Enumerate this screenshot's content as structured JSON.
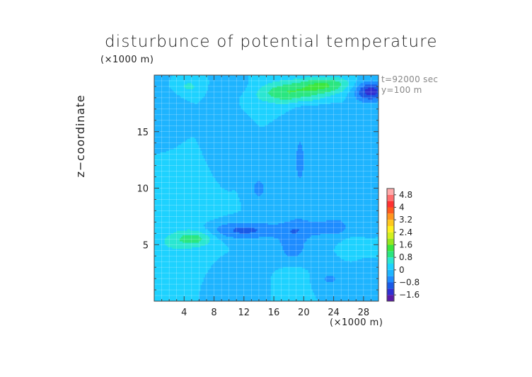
{
  "chart_data": {
    "type": "heatmap",
    "title": "disturbunce of potential temperature",
    "ylabel": "z−coordinate",
    "xunit": "(×1000 m)",
    "yunit": "(×1000 m)",
    "annotations": [
      "t=92000 sec",
      "y=100 m"
    ],
    "xlim": [
      0,
      30
    ],
    "ylim": [
      0,
      20
    ],
    "xticks": [
      4,
      8,
      12,
      16,
      20,
      24,
      28
    ],
    "xtick_labels": [
      "4",
      "8",
      "12",
      "16",
      "20",
      "24",
      "28"
    ],
    "yticks": [
      5,
      10,
      15
    ],
    "ytick_labels": [
      "5",
      "10",
      "15"
    ],
    "grid": true,
    "colorbar": {
      "levels": [
        -2.0,
        -1.6,
        -1.2,
        -0.8,
        -0.4,
        0,
        0.4,
        0.8,
        1.2,
        1.6,
        2.0,
        2.4,
        2.8,
        3.2,
        3.6,
        4.0,
        4.4,
        4.8,
        5.2
      ],
      "tick_values": [
        -1.6,
        -0.8,
        0,
        0.8,
        1.6,
        2.4,
        3.2,
        4,
        4.8
      ],
      "tick_labels": [
        "−1.6",
        "−0.8",
        "0",
        "0.8",
        "1.6",
        "2.4",
        "3.2",
        "4",
        "4.8"
      ],
      "colors": [
        "#5a1aa8",
        "#2f2fd2",
        "#1a5ae6",
        "#1e8cff",
        "#1eb4ff",
        "#1ed2ff",
        "#2ae6d2",
        "#2ae680",
        "#3ce63c",
        "#96e61e",
        "#d2f01e",
        "#fff01e",
        "#ffc81e",
        "#ff961e",
        "#ff5a1e",
        "#ff3232",
        "#ff6e6e",
        "#ffaaaa"
      ]
    },
    "field_features": [
      {
        "x": 18,
        "z": 18.5,
        "value": 1.2,
        "sx": 3.5,
        "sz": 0.7
      },
      {
        "x": 23,
        "z": 19.2,
        "value": 1.0,
        "sx": 2.5,
        "sz": 0.5
      },
      {
        "x": 4.5,
        "z": 19.0,
        "value": 0.5,
        "sx": 2.0,
        "sz": 0.6
      },
      {
        "x": 29,
        "z": 18.6,
        "value": -1.4,
        "sx": 1.6,
        "sz": 0.6
      },
      {
        "x": 1.5,
        "z": 17.5,
        "value": -0.4,
        "sx": 1.5,
        "sz": 1.5
      },
      {
        "x": 11,
        "z": 18.8,
        "value": -0.3,
        "sx": 3.0,
        "sz": 0.6
      },
      {
        "x": 9,
        "z": 15.5,
        "value": -0.4,
        "sx": 1.2,
        "sz": 3.0
      },
      {
        "x": 14,
        "z": 10.0,
        "value": -0.5,
        "sx": 1.0,
        "sz": 1.0
      },
      {
        "x": 19.5,
        "z": 12.5,
        "value": -0.45,
        "sx": 1.0,
        "sz": 3.2
      },
      {
        "x": 22.5,
        "z": 16.5,
        "value": -0.35,
        "sx": 2.0,
        "sz": 0.8
      },
      {
        "x": 24.5,
        "z": 10.0,
        "value": -0.35,
        "sx": 1.2,
        "sz": 2.5
      },
      {
        "x": 5.5,
        "z": 5.6,
        "value": 0.9,
        "sx": 1.8,
        "sz": 0.55
      },
      {
        "x": 12.0,
        "z": 6.3,
        "value": -0.9,
        "sx": 3.5,
        "sz": 0.55
      },
      {
        "x": 18.5,
        "z": 5.0,
        "value": -0.6,
        "sx": 1.5,
        "sz": 1.4
      },
      {
        "x": 22.5,
        "z": 6.5,
        "value": -0.55,
        "sx": 3.0,
        "sz": 0.6
      },
      {
        "x": 2.5,
        "z": 5.2,
        "value": 0.4,
        "sx": 1.8,
        "sz": 0.8
      },
      {
        "x": 18.5,
        "z": 2.0,
        "value": 0.45,
        "sx": 1.2,
        "sz": 1.0
      },
      {
        "x": 23.5,
        "z": 2.0,
        "value": -0.45,
        "sx": 1.3,
        "sz": 0.6
      },
      {
        "x": 28,
        "z": 12.0,
        "value": -0.3,
        "sx": 1.0,
        "sz": 4.0
      },
      {
        "x": 5.5,
        "z": 9.0,
        "value": 0.25,
        "sx": 2.5,
        "sz": 2.0
      },
      {
        "x": 12.0,
        "z": 2.0,
        "value": -0.3,
        "sx": 1.5,
        "sz": 1.0
      },
      {
        "x": 27.0,
        "z": 5.0,
        "value": 0.3,
        "sx": 1.5,
        "sz": 0.6
      }
    ]
  }
}
